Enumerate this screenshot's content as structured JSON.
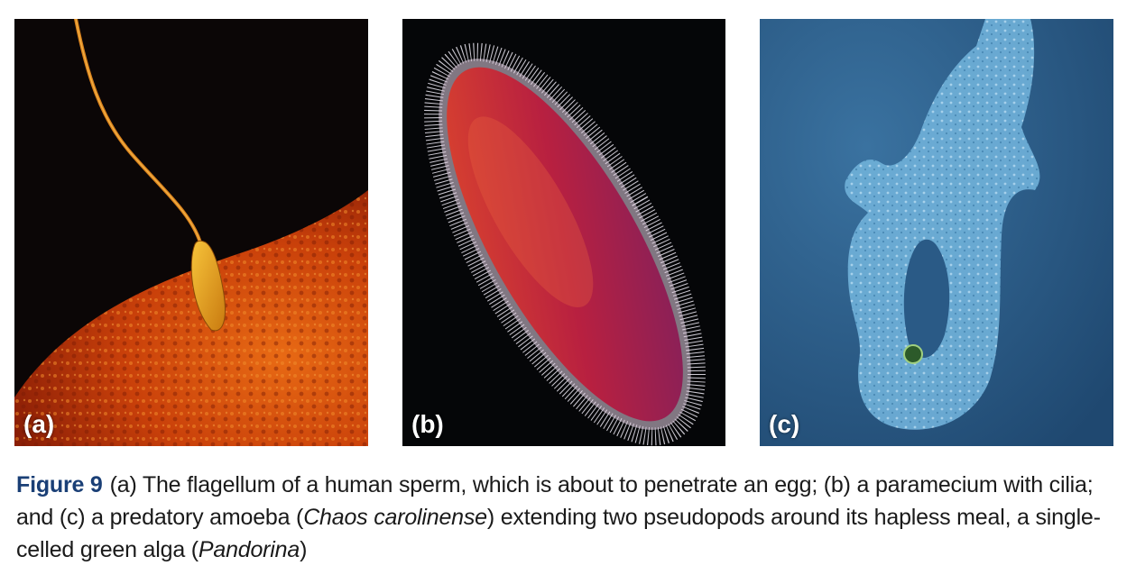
{
  "figure": {
    "label": "Figure 9",
    "caption_parts": {
      "p1": "(a) The flagellum of a human sperm, which is about to penetrate an egg; (b) a paramecium with cilia; and (c) a predatory amoeba (",
      "species1": "Chaos carolinense",
      "p2": ") extending two pseudopods around its hapless meal, a single-celled green alga (",
      "species2": "Pandorina",
      "p3": ")"
    }
  },
  "panels": [
    {
      "label": "(a)",
      "subject": "sperm-and-egg",
      "colors": {
        "background": "#0b0606",
        "egg": "#d2440a",
        "sperm": "#e8a21c"
      }
    },
    {
      "label": "(b)",
      "subject": "paramecium",
      "colors": {
        "background": "#050608",
        "cell": "#c0283c",
        "cilia": "#e8e2f0"
      }
    },
    {
      "label": "(c)",
      "subject": "amoeba",
      "colors": {
        "background": "#2f5f8a",
        "cell": "#6fb0d8",
        "alga": "#2c5a2a"
      }
    }
  ],
  "colors": {
    "caption_label": "#1a3f76",
    "caption_text": "#1a1a1a"
  }
}
